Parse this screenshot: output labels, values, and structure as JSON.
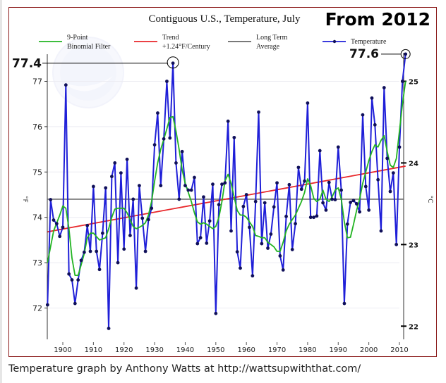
{
  "caption": "Temperature graph by Anthony Watts at http://wattsupwiththat.com/",
  "chart_data": {
    "type": "line",
    "title": "Contiguous U.S., Temperature, July",
    "overlay_title": "From 2012",
    "xlabel": "",
    "ylabel": "°F",
    "ylabel_right": "°C",
    "xlim": [
      1895,
      2013
    ],
    "ylim": [
      71.35,
      77.6
    ],
    "ylim_right_celsius": [
      21.86,
      25.33
    ],
    "x_ticks": [
      1900,
      1910,
      1920,
      1930,
      1940,
      1950,
      1960,
      1970,
      1980,
      1990,
      2000,
      2010
    ],
    "x_tick_labels": [
      "1900",
      "1910",
      "1920",
      "1930",
      "1940",
      "1950",
      "1960",
      "1970",
      "1980",
      "1990",
      "2000",
      "2010"
    ],
    "y_ticks": [
      72,
      73,
      74,
      75,
      76,
      77
    ],
    "y_tick_labels": [
      "72",
      "73",
      "74",
      "75",
      "76",
      "77"
    ],
    "y_ticks_right": [
      22,
      23,
      24,
      25
    ],
    "y_tick_labels_right": [
      "22",
      "23",
      "24",
      "25"
    ],
    "grid": true,
    "legend_position": "top",
    "legend": [
      {
        "label_line1": "9-Point",
        "label_line2": "Binomial Filter",
        "color": "#22b422",
        "marker": false
      },
      {
        "label_line1": "Trend",
        "label_line2": "+1.24°F/Century",
        "color": "#e8262a",
        "marker": false
      },
      {
        "label_line1": "Long Term",
        "label_line2": "Average",
        "color": "#666666",
        "marker": false
      },
      {
        "label_line1": "Temperature",
        "label_line2": "",
        "color": "#1f1fd8",
        "marker": true
      }
    ],
    "annotations": [
      {
        "text": "77.4",
        "year": 1936,
        "value": 77.4
      },
      {
        "text": "77.6",
        "year": 2012,
        "value": 77.6
      }
    ],
    "long_term_average": 74.4,
    "trend": {
      "start": [
        1895,
        73.68
      ],
      "end": [
        2012,
        75.13
      ]
    },
    "series": [
      {
        "name": "Temperature",
        "color": "#1f1fd8",
        "x": [
          1895,
          1896,
          1897,
          1898,
          1899,
          1900,
          1901,
          1902,
          1903,
          1904,
          1905,
          1906,
          1907,
          1908,
          1909,
          1910,
          1911,
          1912,
          1913,
          1914,
          1915,
          1916,
          1917,
          1918,
          1919,
          1920,
          1921,
          1922,
          1923,
          1924,
          1925,
          1926,
          1927,
          1928,
          1929,
          1930,
          1931,
          1932,
          1933,
          1934,
          1935,
          1936,
          1937,
          1938,
          1939,
          1940,
          1941,
          1942,
          1943,
          1944,
          1945,
          1946,
          1947,
          1948,
          1949,
          1950,
          1951,
          1952,
          1953,
          1954,
          1955,
          1956,
          1957,
          1958,
          1959,
          1960,
          1961,
          1962,
          1963,
          1964,
          1965,
          1966,
          1967,
          1968,
          1969,
          1970,
          1971,
          1972,
          1973,
          1974,
          1975,
          1976,
          1977,
          1978,
          1979,
          1980,
          1981,
          1982,
          1983,
          1984,
          1985,
          1986,
          1987,
          1988,
          1989,
          1990,
          1991,
          1992,
          1993,
          1994,
          1995,
          1996,
          1997,
          1998,
          1999,
          2000,
          2001,
          2002,
          2003,
          2004,
          2005,
          2006,
          2007,
          2008,
          2009,
          2010,
          2011,
          2012
        ],
        "values": [
          72.07,
          74.39,
          73.94,
          73.86,
          73.58,
          73.78,
          76.92,
          72.75,
          72.62,
          72.1,
          72.62,
          73.05,
          73.23,
          73.82,
          73.25,
          74.68,
          73.25,
          72.85,
          73.65,
          74.65,
          71.55,
          74.9,
          75.2,
          73.0,
          74.98,
          73.3,
          75.28,
          73.6,
          74.4,
          72.44,
          74.7,
          73.98,
          73.25,
          73.95,
          74.2,
          75.6,
          76.3,
          74.7,
          75.73,
          77.0,
          75.75,
          77.4,
          75.2,
          74.4,
          75.45,
          74.7,
          74.6,
          74.6,
          74.88,
          73.42,
          73.55,
          74.45,
          73.43,
          73.92,
          74.73,
          71.88,
          74.28,
          74.73,
          74.76,
          76.12,
          73.7,
          75.76,
          73.24,
          72.88,
          74.24,
          74.5,
          73.78,
          72.71,
          74.35,
          76.32,
          73.42,
          74.32,
          73.32,
          73.63,
          74.23,
          74.76,
          73.15,
          72.84,
          74.02,
          74.72,
          73.29,
          73.86,
          75.1,
          74.62,
          74.8,
          76.52,
          74.0,
          74.0,
          74.03,
          75.47,
          74.32,
          74.16,
          74.77,
          74.4,
          74.39,
          75.55,
          74.6,
          72.1,
          73.85,
          74.33,
          74.37,
          74.3,
          74.12,
          76.26,
          74.68,
          74.16,
          76.63,
          76.04,
          74.83,
          73.7,
          76.86,
          75.3,
          74.57,
          74.98,
          73.4,
          75.55,
          77.0,
          77.6
        ]
      },
      {
        "name": "9-Point Binomial Filter",
        "color": "#22b422",
        "x": [
          1895,
          1897,
          1899,
          1900,
          1901,
          1902,
          1903,
          1904,
          1905,
          1906,
          1907,
          1908,
          1909,
          1910,
          1912,
          1914,
          1915,
          1916,
          1917,
          1918,
          1920,
          1921,
          1922,
          1923,
          1924,
          1925,
          1926,
          1927,
          1928,
          1929,
          1930,
          1931,
          1932,
          1933,
          1934,
          1935,
          1936,
          1937,
          1938,
          1939,
          1940,
          1941,
          1942,
          1943,
          1944,
          1945,
          1946,
          1947,
          1948,
          1949,
          1950,
          1951,
          1952,
          1953,
          1954,
          1955,
          1956,
          1957,
          1958,
          1959,
          1960,
          1961,
          1962,
          1963,
          1964,
          1965,
          1966,
          1967,
          1968,
          1969,
          1970,
          1971,
          1972,
          1973,
          1974,
          1975,
          1976,
          1977,
          1978,
          1979,
          1980,
          1981,
          1982,
          1983,
          1984,
          1985,
          1986,
          1987,
          1988,
          1989,
          1990,
          1991,
          1992,
          1993,
          1994,
          1995,
          1996,
          1997,
          1998,
          1999,
          2000,
          2001,
          2002,
          2003,
          2004,
          2005,
          2006,
          2007,
          2008,
          2009,
          2010,
          2011,
          2012
        ],
        "values": [
          73.0,
          73.7,
          74.05,
          74.25,
          74.2,
          73.75,
          73.1,
          72.72,
          72.72,
          72.95,
          73.2,
          73.55,
          73.65,
          73.65,
          73.5,
          73.55,
          73.75,
          74.0,
          74.18,
          74.2,
          74.2,
          74.1,
          73.95,
          73.8,
          73.75,
          73.78,
          73.82,
          73.88,
          74.05,
          74.35,
          74.8,
          75.2,
          75.5,
          75.72,
          75.95,
          76.2,
          76.22,
          75.9,
          75.5,
          75.05,
          74.75,
          74.55,
          74.35,
          74.1,
          73.9,
          73.85,
          73.88,
          73.85,
          73.8,
          73.75,
          73.8,
          74.0,
          74.35,
          74.8,
          74.95,
          74.75,
          74.45,
          74.15,
          74.05,
          74.05,
          74.0,
          73.9,
          73.8,
          73.6,
          73.58,
          73.55,
          73.55,
          73.45,
          73.4,
          73.35,
          73.25,
          73.25,
          73.45,
          73.7,
          73.85,
          73.95,
          74.05,
          74.2,
          74.35,
          74.55,
          74.85,
          74.7,
          74.42,
          74.35,
          74.4,
          74.6,
          74.4,
          74.35,
          74.45,
          74.6,
          74.65,
          74.4,
          73.9,
          73.55,
          73.56,
          73.85,
          74.15,
          74.4,
          74.75,
          75.0,
          75.25,
          75.45,
          75.6,
          75.55,
          75.7,
          75.8,
          75.45,
          75.15,
          75.1,
          75.3,
          75.9,
          76.5,
          77.0
        ]
      }
    ]
  }
}
